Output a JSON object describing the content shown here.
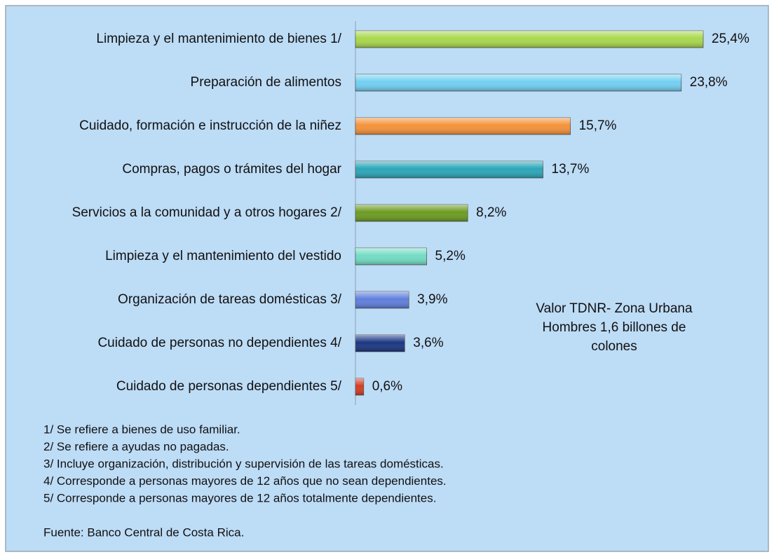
{
  "chart_data": {
    "type": "bar",
    "orientation": "horizontal",
    "categories": [
      "Limpieza y el mantenimiento de bienes 1/",
      "Preparación de alimentos",
      "Cuidado, formación e instrucción de la niñez",
      "Compras, pagos o trámites del hogar",
      "Servicios a la comunidad y a otros hogares 2/",
      "Limpieza y el mantenimiento del vestido",
      "Organización de tareas domésticas 3/",
      "Cuidado de personas no dependientes 4/",
      "Cuidado de personas dependientes 5/"
    ],
    "values": [
      25.4,
      23.8,
      15.7,
      13.7,
      8.2,
      5.2,
      3.9,
      3.6,
      0.6
    ],
    "value_labels": [
      "25,4%",
      "23,8%",
      "15,7%",
      "13,7%",
      "8,2%",
      "5,2%",
      "3,9%",
      "3,6%",
      "0,6%"
    ],
    "colors": [
      "#a8d84c",
      "#72d0f2",
      "#f5923a",
      "#2ba6b8",
      "#6c9c22",
      "#72dcc4",
      "#5f7fdc",
      "#1b3782",
      "#d63c22"
    ],
    "annotation": [
      "Valor TDNR- Zona Urbana",
      "Hombres 1,6 billones de",
      "colones"
    ],
    "footnotes": [
      "1/ Se refiere a bienes de uso familiar.",
      "2/ Se refiere a ayudas no pagadas.",
      "3/ Incluye organización, distribución y supervisión de las tareas domésticas.",
      "4/ Corresponde a personas mayores de 12 años que no sean dependientes.",
      "5/ Corresponde a personas mayores de 12 años totalmente dependientes."
    ],
    "source": "Fuente: Banco Central de Costa Rica."
  }
}
